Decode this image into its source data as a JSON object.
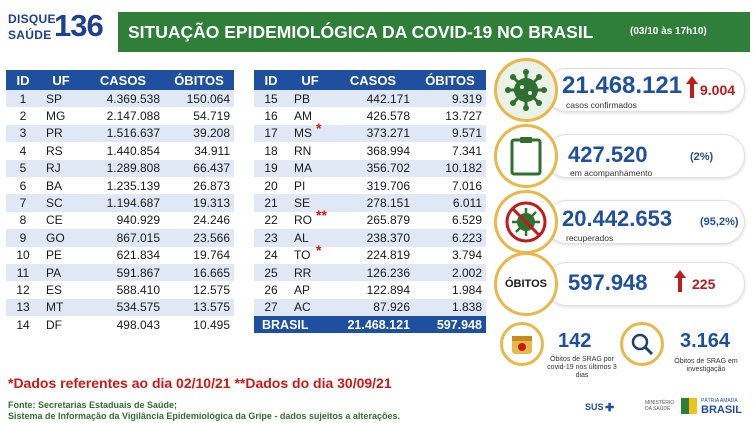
{
  "logo": {
    "line1": "DISQUE",
    "line2": "SAÚDE",
    "number": "136"
  },
  "header": {
    "title": "SITUAÇÃO EPIDEMIOLÓGICA DA COVID-19 NO BRASIL",
    "date": "(03/10 às 17h10)"
  },
  "table": {
    "columns": [
      "ID",
      "UF",
      "CASOS",
      "ÓBITOS"
    ],
    "left_rows": [
      {
        "id": "1",
        "uf": "SP",
        "casos": "4.369.538",
        "obitos": "150.064",
        "mark": ""
      },
      {
        "id": "2",
        "uf": "MG",
        "casos": "2.147.088",
        "obitos": "54.719",
        "mark": ""
      },
      {
        "id": "3",
        "uf": "PR",
        "casos": "1.516.637",
        "obitos": "39.208",
        "mark": ""
      },
      {
        "id": "4",
        "uf": "RS",
        "casos": "1.440.854",
        "obitos": "34.911",
        "mark": ""
      },
      {
        "id": "5",
        "uf": "RJ",
        "casos": "1.289.808",
        "obitos": "66.437",
        "mark": ""
      },
      {
        "id": "6",
        "uf": "BA",
        "casos": "1.235.139",
        "obitos": "26.873",
        "mark": ""
      },
      {
        "id": "7",
        "uf": "SC",
        "casos": "1.194.687",
        "obitos": "19.313",
        "mark": ""
      },
      {
        "id": "8",
        "uf": "CE",
        "casos": "940.929",
        "obitos": "24.246",
        "mark": ""
      },
      {
        "id": "9",
        "uf": "GO",
        "casos": "867.015",
        "obitos": "23.566",
        "mark": ""
      },
      {
        "id": "10",
        "uf": "PE",
        "casos": "621.834",
        "obitos": "19.764",
        "mark": ""
      },
      {
        "id": "11",
        "uf": "PA",
        "casos": "591.867",
        "obitos": "16.665",
        "mark": ""
      },
      {
        "id": "12",
        "uf": "ES",
        "casos": "588.410",
        "obitos": "12.575",
        "mark": ""
      },
      {
        "id": "13",
        "uf": "MT",
        "casos": "534.575",
        "obitos": "13.575",
        "mark": ""
      },
      {
        "id": "14",
        "uf": "DF",
        "casos": "498.043",
        "obitos": "10.495",
        "mark": ""
      }
    ],
    "right_rows": [
      {
        "id": "15",
        "uf": "PB",
        "casos": "442.171",
        "obitos": "9.319",
        "mark": ""
      },
      {
        "id": "16",
        "uf": "AM",
        "casos": "426.578",
        "obitos": "13.727",
        "mark": ""
      },
      {
        "id": "17",
        "uf": "MS",
        "casos": "373.271",
        "obitos": "9.571",
        "mark": "*"
      },
      {
        "id": "18",
        "uf": "RN",
        "casos": "368.994",
        "obitos": "7.341",
        "mark": ""
      },
      {
        "id": "19",
        "uf": "MA",
        "casos": "356.702",
        "obitos": "10.182",
        "mark": ""
      },
      {
        "id": "20",
        "uf": "PI",
        "casos": "319.706",
        "obitos": "7.016",
        "mark": ""
      },
      {
        "id": "21",
        "uf": "SE",
        "casos": "278.151",
        "obitos": "6.011",
        "mark": ""
      },
      {
        "id": "22",
        "uf": "RO",
        "casos": "265.879",
        "obitos": "6.529",
        "mark": "**"
      },
      {
        "id": "23",
        "uf": "AL",
        "casos": "238.370",
        "obitos": "6.223",
        "mark": ""
      },
      {
        "id": "24",
        "uf": "TO",
        "casos": "224.819",
        "obitos": "3.794",
        "mark": "*"
      },
      {
        "id": "25",
        "uf": "RR",
        "casos": "126.236",
        "obitos": "2.002",
        "mark": ""
      },
      {
        "id": "26",
        "uf": "AP",
        "casos": "122.894",
        "obitos": "1.984",
        "mark": ""
      },
      {
        "id": "27",
        "uf": "AC",
        "casos": "87.926",
        "obitos": "1.838",
        "mark": ""
      }
    ],
    "total": {
      "label": "BRASIL",
      "casos": "21.468.121",
      "obitos": "597.948"
    }
  },
  "notes": {
    "line": "*Dados referentes ao dia 02/10/21  **Dados do dia 30/09/21"
  },
  "source": {
    "line1": "Fonte: Secretarias Estaduais de Saúde;",
    "line2": "Sistema de Informação da Vigilância Epidemiológica da Gripe - dados sujeitos a alterações."
  },
  "stats": {
    "confirmed": {
      "value": "21.468.121",
      "label": "casos confirmados",
      "increase": "9.004",
      "icon": "virus-icon"
    },
    "monitoring": {
      "value": "427.520",
      "label": "em acompanhamento",
      "pct": "(2%)",
      "icon": "clipboard-icon"
    },
    "recovered": {
      "value": "20.442.653",
      "label": "recuperados",
      "pct": "(95,2%)",
      "icon": "crossed-virus-icon"
    },
    "deaths": {
      "badge": "ÓBITOS",
      "value": "597.948",
      "increase": "225"
    },
    "srag": {
      "value": "142",
      "label": "Óbitos de SRAG por covid-19 nos últimos 3 dias",
      "icon": "calendar-icon"
    },
    "investigation": {
      "value": "3.164",
      "label": "Óbitos de SRAG em investigação",
      "icon": "magnifier-icon"
    }
  },
  "footer_logos": {
    "sus": "SUS",
    "ministry": "MINISTÉRIO DA SAÚDE",
    "brasil": "BRASIL",
    "brasil_small": "PÁTRIA AMADA"
  },
  "colors": {
    "green": "#2f7f3a",
    "blue": "#1f4f9f",
    "red": "#c21a1a",
    "gold": "#e8b84a"
  }
}
